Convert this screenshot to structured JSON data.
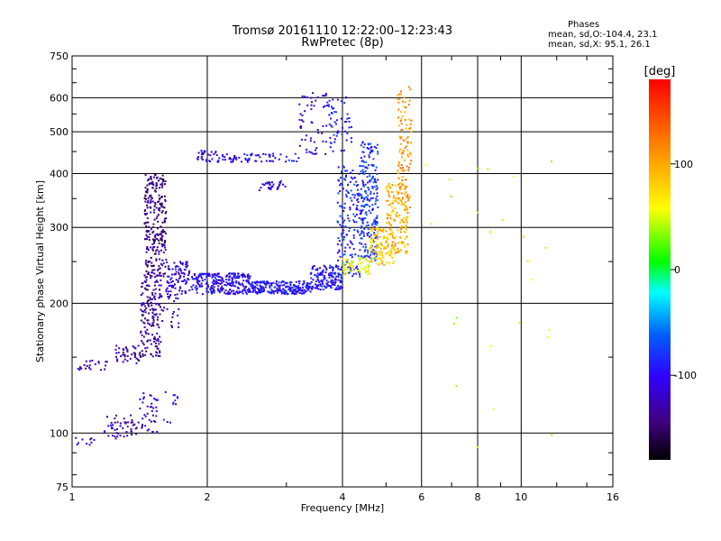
{
  "chart_data": {
    "type": "scatter",
    "title": "Tromsø 20161110 12:22:00–12:23:43",
    "subtitle": "RwPretec (8p)",
    "xlabel": "Frequency [MHz]",
    "ylabel": "Stationary phase Virtual Height [km]",
    "x_scale": "log",
    "y_scale": "log",
    "xlim": [
      1,
      16
    ],
    "ylim": [
      75,
      750
    ],
    "x_ticks": [
      1,
      2,
      4,
      6,
      8,
      10,
      16
    ],
    "x_tick_labels": [
      "1",
      "2",
      "4",
      "6",
      "8",
      "10",
      "16"
    ],
    "y_ticks": [
      75,
      100,
      200,
      300,
      400,
      500,
      600,
      750
    ],
    "y_tick_labels": [
      "75",
      "100",
      "200",
      "300",
      "400",
      "500",
      "600",
      "750"
    ],
    "grid": true,
    "colorbar": {
      "label": "[deg]",
      "range": [
        -180,
        180
      ],
      "ticks": [
        -100,
        0,
        100
      ],
      "tick_labels": [
        "-100",
        "0",
        "100"
      ]
    },
    "stats": {
      "header": "Phases",
      "line_o": "mean, sd,O:-104.4, 23.1",
      "line_x": "mean, sd,X:  95.1, 26.1"
    },
    "clusters": [
      {
        "f": [
          1.0,
          1.12
        ],
        "h": [
          93,
          98
        ],
        "phase": -110,
        "n": 10
      },
      {
        "f": [
          1.18,
          1.4
        ],
        "h": [
          97,
          110
        ],
        "phase": -130,
        "n": 50
      },
      {
        "f": [
          1.4,
          1.55
        ],
        "h": [
          100,
          125
        ],
        "phase": -115,
        "n": 40
      },
      {
        "f": [
          1.6,
          1.72
        ],
        "h": [
          105,
          130
        ],
        "phase": -100,
        "n": 12
      },
      {
        "f": [
          1.03,
          1.2
        ],
        "h": [
          140,
          148
        ],
        "phase": -120,
        "n": 22
      },
      {
        "f": [
          1.25,
          1.42
        ],
        "h": [
          145,
          160
        ],
        "phase": -125,
        "n": 40
      },
      {
        "f": [
          1.42,
          1.58
        ],
        "h": [
          150,
          230
        ],
        "phase": -135,
        "n": 160
      },
      {
        "f": [
          1.45,
          1.62
        ],
        "h": [
          230,
          400
        ],
        "phase": -140,
        "n": 260
      },
      {
        "f": [
          1.58,
          1.75
        ],
        "h": [
          175,
          245
        ],
        "phase": -120,
        "n": 40
      },
      {
        "f": [
          1.62,
          1.85
        ],
        "h": [
          210,
          250
        ],
        "phase": -110,
        "n": 80
      },
      {
        "f": [
          1.85,
          2.5
        ],
        "h": [
          210,
          235
        ],
        "phase": -100,
        "n": 260
      },
      {
        "f": [
          2.5,
          3.4
        ],
        "h": [
          210,
          225
        ],
        "phase": -95,
        "n": 230
      },
      {
        "f": [
          3.4,
          4.0
        ],
        "h": [
          215,
          245
        ],
        "phase": -95,
        "n": 150
      },
      {
        "f": [
          3.9,
          4.4
        ],
        "h": [
          230,
          420
        ],
        "phase": -85,
        "n": 170
      },
      {
        "f": [
          4.4,
          4.8
        ],
        "h": [
          250,
          480
        ],
        "phase": -80,
        "n": 220
      },
      {
        "f": [
          4.0,
          4.6
        ],
        "h": [
          232,
          255
        ],
        "phase": 60,
        "n": 60
      },
      {
        "f": [
          4.6,
          5.2
        ],
        "h": [
          245,
          300
        ],
        "phase": 85,
        "n": 120
      },
      {
        "f": [
          5.0,
          5.6
        ],
        "h": [
          260,
          380
        ],
        "phase": 95,
        "n": 160
      },
      {
        "f": [
          5.3,
          5.7
        ],
        "h": [
          330,
          640
        ],
        "phase": 110,
        "n": 110
      },
      {
        "f": [
          1.9,
          2.1
        ],
        "h": [
          425,
          455
        ],
        "phase": -105,
        "n": 25
      },
      {
        "f": [
          2.1,
          3.2
        ],
        "h": [
          425,
          445
        ],
        "phase": -100,
        "n": 70
      },
      {
        "f": [
          2.6,
          3.0
        ],
        "h": [
          365,
          385
        ],
        "phase": -110,
        "n": 30
      },
      {
        "f": [
          3.2,
          3.7
        ],
        "h": [
          440,
          620
        ],
        "phase": -115,
        "n": 55
      },
      {
        "f": [
          3.7,
          4.2
        ],
        "h": [
          450,
          610
        ],
        "phase": -90,
        "n": 55
      },
      {
        "f": [
          6.0,
          13.5
        ],
        "h": [
          90,
          450
        ],
        "phase": 50,
        "n": 25
      }
    ]
  }
}
